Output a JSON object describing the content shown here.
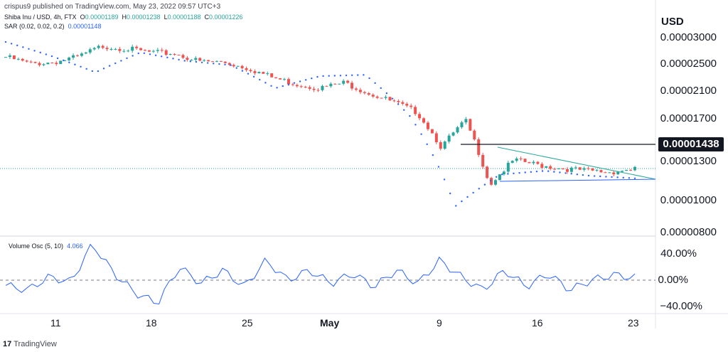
{
  "header": {
    "published": "crispus9 published on TradingView.com, May 23, 2022 09:57 UTC+3"
  },
  "legend": {
    "symbol": "Shiba Inu / USD, 4h, FTX",
    "open_label": "O",
    "open": "0.00001189",
    "high_label": "H",
    "high": "0.00001238",
    "low_label": "L",
    "low": "0.00001188",
    "close_label": "C",
    "close": "0.00001226",
    "sar_label": "SAR (0.02, 0.02, 0.2)",
    "sar_value": "0.00001148"
  },
  "price_axis": {
    "currency": "USD",
    "ticks": [
      "0.00003000",
      "0.00002500",
      "0.00002100",
      "0.00001700",
      "0.00001300",
      "0.00001000",
      "0.00000800"
    ],
    "marker_label": "0.00001438"
  },
  "oscillator": {
    "label": "Volume Osc (5, 10)",
    "value": "4.066",
    "ticks": [
      "40.00%",
      "0.00%",
      "−40.00%"
    ]
  },
  "x_axis": {
    "labels": [
      "11",
      "18",
      "25",
      "May",
      "9",
      "16",
      "23"
    ]
  },
  "footer": {
    "brand": "TradingView"
  },
  "colors": {
    "up": "#26a69a",
    "down": "#ef5350",
    "sar": "#2962ff",
    "line": "#131722",
    "osc": "#2962ff"
  },
  "chart_data": [
    {
      "type": "candlestick",
      "title": "Shiba Inu / USD, 4h, FTX",
      "ylabel": "USD",
      "ylim": [
        7.6e-06,
        3.3e-06
      ],
      "y_scale": "log",
      "x": [
        "Apr 6",
        "Apr 8",
        "Apr 10",
        "Apr 12",
        "Apr 14",
        "Apr 16",
        "Apr 18",
        "Apr 20",
        "Apr 22",
        "Apr 24",
        "Apr 26",
        "Apr 28",
        "Apr 30",
        "May 2",
        "May 4",
        "May 6",
        "May 8",
        "May 9",
        "May 10",
        "May 11",
        "May 12",
        "May 14",
        "May 16",
        "May 18",
        "May 20",
        "May 22",
        "May 23"
      ],
      "close": [
        2.62e-05,
        2.5e-05,
        2.53e-05,
        2.62e-05,
        2.82e-05,
        2.77e-05,
        2.7e-05,
        2.68e-05,
        2.54e-05,
        2.53e-05,
        2.43e-05,
        2.28e-05,
        2.18e-05,
        2.12e-05,
        2.2e-05,
        2.05e-05,
        1.93e-05,
        1.8e-05,
        1.42e-05,
        1.7e-05,
        1.1e-05,
        1.3e-05,
        1.26e-05,
        1.23e-05,
        1.21e-05,
        1.2e-05,
        1.23e-05
      ],
      "series": [
        {
          "name": "SAR (0.02, 0.02, 0.2)",
          "x": [
            "Apr 6",
            "Apr 10",
            "Apr 13",
            "Apr 17",
            "Apr 22",
            "Apr 27",
            "May 1",
            "May 4",
            "May 8",
            "May 10",
            "May 12",
            "May 14",
            "May 17",
            "May 21",
            "May 23"
          ],
          "values": [
            2.9e-05,
            2.64e-05,
            2.36e-05,
            2.7e-05,
            2.55e-05,
            2.48e-05,
            2.12e-05,
            2.3e-05,
            2.32e-05,
            1.75e-05,
            9.5e-06,
            1.18e-05,
            1.21e-05,
            1.17e-05,
            1.15e-05
          ]
        }
      ],
      "annotations": [
        {
          "type": "horizontal_line",
          "value": 1.438e-05,
          "label": "0.00001438"
        },
        {
          "type": "trendline",
          "from": [
            "May 13",
            1.44e-05
          ],
          "to": [
            "May 23",
            1.16e-05
          ]
        },
        {
          "type": "trendline",
          "from": [
            "May 13",
            1.12e-05
          ],
          "to": [
            "May 23",
            1.13e-05
          ]
        }
      ],
      "grid": false
    },
    {
      "type": "line",
      "title": "Volume Osc (5, 10)",
      "ylim": [
        -50,
        55
      ],
      "x": [
        "Apr 6",
        "Apr 8",
        "Apr 10",
        "Apr 11",
        "Apr 12",
        "Apr 13",
        "Apr 15",
        "Apr 17",
        "Apr 19",
        "Apr 20",
        "Apr 22",
        "Apr 24",
        "Apr 25",
        "Apr 27",
        "Apr 29",
        "May 1",
        "May 3",
        "May 5",
        "May 7",
        "May 9",
        "May 10",
        "May 11",
        "May 12",
        "May 13",
        "May 15",
        "May 17",
        "May 19",
        "May 21",
        "May 22",
        "May 23"
      ],
      "values": [
        -8,
        -15,
        5,
        -3,
        55,
        10,
        -20,
        -35,
        20,
        -5,
        15,
        -10,
        30,
        0,
        15,
        -5,
        10,
        -10,
        15,
        -5,
        30,
        5,
        -15,
        15,
        -10,
        10,
        -15,
        0,
        8,
        4
      ],
      "reference_line": 0,
      "grid": false
    }
  ]
}
